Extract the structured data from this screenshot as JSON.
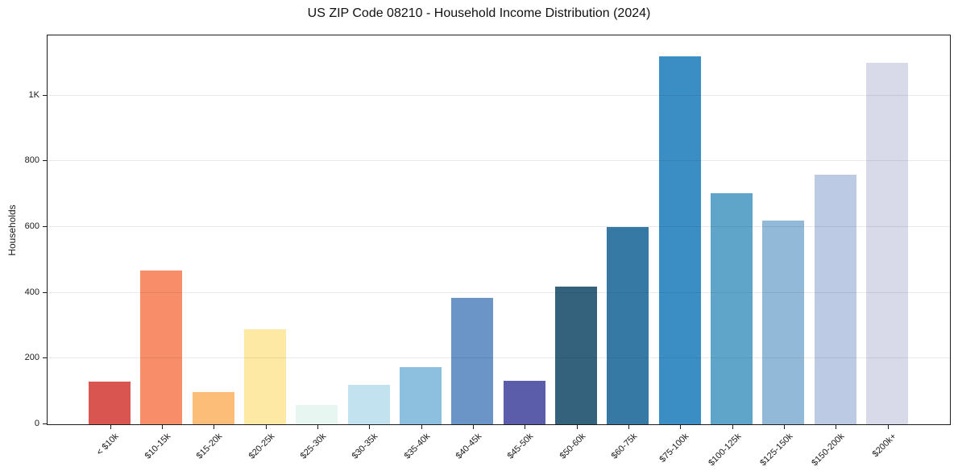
{
  "title": "US ZIP Code 08210 - Household Income Distribution (2024)",
  "colors": {
    "background": "#ffffff",
    "spine": "#1c1c1c",
    "grid": "#ededed",
    "text": "#191919"
  },
  "chart_data": {
    "type": "bar",
    "title": "US ZIP Code 08210 - Household Income Distribution (2024)",
    "xlabel": "",
    "ylabel": "Households",
    "categories": [
      "< $10k",
      "$10-15k",
      "$15-20k",
      "$20-25k",
      "$25-30k",
      "$30-35k",
      "$35-40k",
      "$40-45k",
      "$45-50k",
      "$50-60k",
      "$60-75k",
      "$75-100k",
      "$100-125k",
      "$125-150k",
      "$150-200k",
      "$200k+"
    ],
    "values": [
      130,
      467,
      98,
      288,
      60,
      120,
      173,
      385,
      133,
      418,
      600,
      1120,
      702,
      620,
      760,
      1100
    ],
    "bar_colors": [
      "#d95550",
      "#f78e69",
      "#fcbd78",
      "#fde9a4",
      "#e8f6f1",
      "#c2e2ef",
      "#8dc0df",
      "#6b94c7",
      "#5b5caa",
      "#34617b",
      "#3779a5",
      "#3a8ec4",
      "#5fa5c9",
      "#93b9d8",
      "#bdcae3",
      "#d8dae9"
    ],
    "ylim": [
      0,
      1180
    ],
    "yticks": [
      {
        "value": 0,
        "label": "0"
      },
      {
        "value": 200,
        "label": "200"
      },
      {
        "value": 400,
        "label": "400"
      },
      {
        "value": 600,
        "label": "600"
      },
      {
        "value": 800,
        "label": "800"
      },
      {
        "value": 1000,
        "label": "1K"
      }
    ],
    "grid": "horizontal",
    "legend": "none"
  }
}
